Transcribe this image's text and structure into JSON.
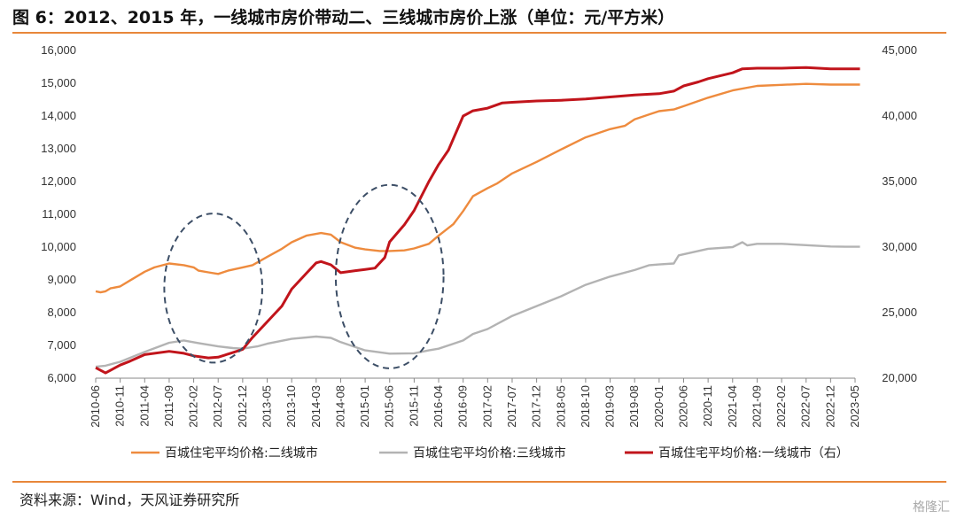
{
  "title": "图 6：2012、2015 年，一线城市房价带动二、三线城市房价上涨（单位：元/平方米）",
  "source": "资料来源：Wind，天风证券研究所",
  "watermark": "格隆汇",
  "chart_data": {
    "type": "line",
    "title": "图 6：2012、2015 年，一线城市房价带动二、三线城市房价上涨（单位：元/平方米）",
    "xlabel": "",
    "ylabel": "",
    "ylim_left": [
      6000,
      16000
    ],
    "ylim_right": [
      20000,
      45000
    ],
    "left_ticks": [
      "6,000",
      "7,000",
      "8,000",
      "9,000",
      "10,000",
      "11,000",
      "12,000",
      "13,000",
      "14,000",
      "15,000",
      "16,000"
    ],
    "right_ticks": [
      "20,000",
      "25,000",
      "30,000",
      "35,000",
      "40,000",
      "45,000"
    ],
    "x_ticks": [
      "2010-06",
      "2010-11",
      "2011-04",
      "2011-09",
      "2012-02",
      "2012-07",
      "2012-12",
      "2013-05",
      "2013-10",
      "2014-03",
      "2014-08",
      "2015-01",
      "2015-06",
      "2015-11",
      "2016-04",
      "2016-09",
      "2017-02",
      "2017-07",
      "2017-12",
      "2018-05",
      "2018-10",
      "2019-03",
      "2019-08",
      "2020-01",
      "2020-06",
      "2020-11",
      "2021-04",
      "2021-09",
      "2022-02",
      "2022-07",
      "2022-12",
      "2023-05"
    ],
    "legend_position": "bottom",
    "colors": {
      "tier2": "#ee8b3e",
      "tier3": "#b3b3b3",
      "tier1": "#c1141b",
      "ellipse": "#3c4e66",
      "accent_rule": "#e8873a"
    },
    "series": [
      {
        "name": "百城住宅平均价格:二线城市",
        "axis": "left",
        "color": "#ee8b3e",
        "points": [
          [
            "2010-06",
            8650
          ],
          [
            "2010-07",
            8620
          ],
          [
            "2010-08",
            8650
          ],
          [
            "2010-09",
            8740
          ],
          [
            "2010-11",
            8800
          ],
          [
            "2011-01",
            8980
          ],
          [
            "2011-04",
            9250
          ],
          [
            "2011-06",
            9380
          ],
          [
            "2011-09",
            9500
          ],
          [
            "2011-12",
            9450
          ],
          [
            "2012-02",
            9380
          ],
          [
            "2012-03",
            9280
          ],
          [
            "2012-05",
            9230
          ],
          [
            "2012-07",
            9180
          ],
          [
            "2012-09",
            9280
          ],
          [
            "2012-12",
            9380
          ],
          [
            "2013-02",
            9450
          ],
          [
            "2013-05",
            9700
          ],
          [
            "2013-08",
            9950
          ],
          [
            "2013-10",
            10150
          ],
          [
            "2014-01",
            10350
          ],
          [
            "2014-04",
            10430
          ],
          [
            "2014-06",
            10380
          ],
          [
            "2014-08",
            10150
          ],
          [
            "2014-11",
            9980
          ],
          [
            "2015-01",
            9930
          ],
          [
            "2015-04",
            9880
          ],
          [
            "2015-06",
            9880
          ],
          [
            "2015-09",
            9900
          ],
          [
            "2015-11",
            9960
          ],
          [
            "2016-02",
            10100
          ],
          [
            "2016-04",
            10350
          ],
          [
            "2016-07",
            10700
          ],
          [
            "2016-09",
            11100
          ],
          [
            "2016-11",
            11550
          ],
          [
            "2017-02",
            11800
          ],
          [
            "2017-04",
            11950
          ],
          [
            "2017-07",
            12250
          ],
          [
            "2017-12",
            12600
          ],
          [
            "2018-05",
            12980
          ],
          [
            "2018-10",
            13350
          ],
          [
            "2019-03",
            13600
          ],
          [
            "2019-06",
            13700
          ],
          [
            "2019-08",
            13900
          ],
          [
            "2019-11",
            14050
          ],
          [
            "2020-01",
            14150
          ],
          [
            "2020-04",
            14200
          ],
          [
            "2020-06",
            14300
          ],
          [
            "2020-11",
            14560
          ],
          [
            "2021-04",
            14780
          ],
          [
            "2021-09",
            14920
          ],
          [
            "2022-02",
            14950
          ],
          [
            "2022-07",
            14980
          ],
          [
            "2022-12",
            14960
          ],
          [
            "2023-03",
            14960
          ],
          [
            "2023-06",
            14960
          ]
        ]
      },
      {
        "name": "百城住宅平均价格:三线城市",
        "axis": "left",
        "color": "#b3b3b3",
        "points": [
          [
            "2010-06",
            6350
          ],
          [
            "2010-08",
            6380
          ],
          [
            "2010-11",
            6500
          ],
          [
            "2011-04",
            6800
          ],
          [
            "2011-09",
            7080
          ],
          [
            "2011-12",
            7150
          ],
          [
            "2012-03",
            7070
          ],
          [
            "2012-07",
            6970
          ],
          [
            "2012-10",
            6920
          ],
          [
            "2012-12",
            6900
          ],
          [
            "2013-03",
            6970
          ],
          [
            "2013-05",
            7050
          ],
          [
            "2013-10",
            7200
          ],
          [
            "2014-03",
            7270
          ],
          [
            "2014-06",
            7230
          ],
          [
            "2014-08",
            7100
          ],
          [
            "2014-11",
            6950
          ],
          [
            "2015-01",
            6850
          ],
          [
            "2015-06",
            6750
          ],
          [
            "2015-11",
            6760
          ],
          [
            "2016-02",
            6850
          ],
          [
            "2016-04",
            6900
          ],
          [
            "2016-09",
            7150
          ],
          [
            "2016-11",
            7350
          ],
          [
            "2017-02",
            7500
          ],
          [
            "2017-07",
            7900
          ],
          [
            "2017-12",
            8200
          ],
          [
            "2018-05",
            8500
          ],
          [
            "2018-10",
            8850
          ],
          [
            "2019-03",
            9100
          ],
          [
            "2019-08",
            9300
          ],
          [
            "2019-11",
            9450
          ],
          [
            "2020-01",
            9470
          ],
          [
            "2020-04",
            9500
          ],
          [
            "2020-05",
            9750
          ],
          [
            "2020-11",
            9950
          ],
          [
            "2021-04",
            10000
          ],
          [
            "2021-06",
            10150
          ],
          [
            "2021-07",
            10050
          ],
          [
            "2021-09",
            10100
          ],
          [
            "2022-02",
            10100
          ],
          [
            "2022-07",
            10060
          ],
          [
            "2022-12",
            10020
          ],
          [
            "2023-03",
            10010
          ],
          [
            "2023-06",
            10010
          ]
        ]
      },
      {
        "name": "百城住宅平均价格:一线城市（右）",
        "axis": "right",
        "color": "#c1141b",
        "points": [
          [
            "2010-06",
            20800
          ],
          [
            "2010-08",
            20400
          ],
          [
            "2010-11",
            21000
          ],
          [
            "2011-01",
            21300
          ],
          [
            "2011-04",
            21800
          ],
          [
            "2011-09",
            22050
          ],
          [
            "2011-12",
            21900
          ],
          [
            "2012-02",
            21700
          ],
          [
            "2012-05",
            21550
          ],
          [
            "2012-07",
            21600
          ],
          [
            "2012-10",
            21950
          ],
          [
            "2012-12",
            22200
          ],
          [
            "2013-02",
            23100
          ],
          [
            "2013-05",
            24300
          ],
          [
            "2013-08",
            25500
          ],
          [
            "2013-10",
            26800
          ],
          [
            "2014-01",
            28000
          ],
          [
            "2014-03",
            28800
          ],
          [
            "2014-04",
            28900
          ],
          [
            "2014-06",
            28650
          ],
          [
            "2014-08",
            28050
          ],
          [
            "2014-11",
            28200
          ],
          [
            "2015-01",
            28300
          ],
          [
            "2015-03",
            28400
          ],
          [
            "2015-05",
            29200
          ],
          [
            "2015-06",
            30400
          ],
          [
            "2015-09",
            31700
          ],
          [
            "2015-11",
            32800
          ],
          [
            "2016-02",
            35000
          ],
          [
            "2016-04",
            36300
          ],
          [
            "2016-06",
            37400
          ],
          [
            "2016-09",
            40000
          ],
          [
            "2016-11",
            40400
          ],
          [
            "2017-02",
            40600
          ],
          [
            "2017-05",
            41000
          ],
          [
            "2017-07",
            41050
          ],
          [
            "2017-12",
            41150
          ],
          [
            "2018-05",
            41200
          ],
          [
            "2018-10",
            41300
          ],
          [
            "2019-03",
            41450
          ],
          [
            "2019-08",
            41600
          ],
          [
            "2020-01",
            41700
          ],
          [
            "2020-04",
            41900
          ],
          [
            "2020-06",
            42300
          ],
          [
            "2020-09",
            42600
          ],
          [
            "2020-11",
            42850
          ],
          [
            "2021-04",
            43300
          ],
          [
            "2021-06",
            43600
          ],
          [
            "2021-09",
            43650
          ],
          [
            "2022-02",
            43650
          ],
          [
            "2022-07",
            43700
          ],
          [
            "2022-12",
            43600
          ],
          [
            "2023-03",
            43600
          ],
          [
            "2023-06",
            43600
          ]
        ]
      }
    ],
    "annotations": [
      {
        "type": "dashed-ellipse",
        "center_x": "2012-06",
        "center_left_value": 8750,
        "x_span_months": 20,
        "left_value_span": 4550
      },
      {
        "type": "dashed-ellipse",
        "center_x": "2015-06",
        "center_left_value": 9100,
        "x_span_months": 22,
        "left_value_span": 5600
      }
    ]
  }
}
